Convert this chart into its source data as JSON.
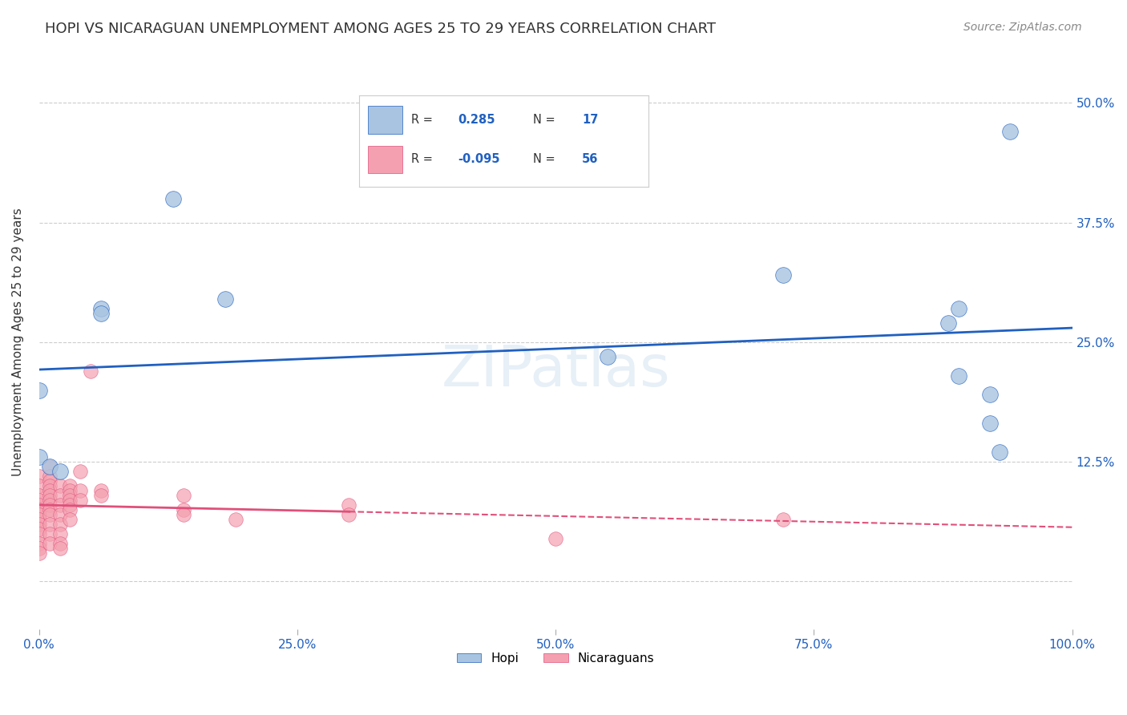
{
  "title": "HOPI VS NICARAGUAN UNEMPLOYMENT AMONG AGES 25 TO 29 YEARS CORRELATION CHART",
  "source": "Source: ZipAtlas.com",
  "ylabel": "Unemployment Among Ages 25 to 29 years",
  "xlim": [
    0.0,
    1.0
  ],
  "ylim": [
    -0.05,
    0.55
  ],
  "yticks": [
    0.0,
    0.125,
    0.25,
    0.375,
    0.5
  ],
  "ytick_labels": [
    "",
    "12.5%",
    "25.0%",
    "37.5%",
    "50.0%"
  ],
  "xtick_labels": [
    "0.0%",
    "25.0%",
    "50.0%",
    "75.0%",
    "100.0%"
  ],
  "xticks": [
    0.0,
    0.25,
    0.5,
    0.75,
    1.0
  ],
  "hopi_R": 0.285,
  "hopi_N": 17,
  "nicaraguan_R": -0.095,
  "nicaraguan_N": 56,
  "hopi_color": "#a8c4e0",
  "nicaraguan_color": "#f4a0b0",
  "hopi_line_color": "#2060c0",
  "nicaraguan_line_color": "#e0507a",
  "hopi_scatter": [
    [
      0.0,
      0.2
    ],
    [
      0.0,
      0.13
    ],
    [
      0.06,
      0.285
    ],
    [
      0.06,
      0.28
    ],
    [
      0.13,
      0.4
    ],
    [
      0.18,
      0.295
    ],
    [
      0.55,
      0.235
    ],
    [
      0.72,
      0.32
    ],
    [
      0.88,
      0.27
    ],
    [
      0.89,
      0.215
    ],
    [
      0.89,
      0.285
    ],
    [
      0.92,
      0.195
    ],
    [
      0.92,
      0.165
    ],
    [
      0.93,
      0.135
    ],
    [
      0.94,
      0.47
    ],
    [
      0.01,
      0.12
    ],
    [
      0.02,
      0.115
    ]
  ],
  "nicaraguan_scatter": [
    [
      0.0,
      0.11
    ],
    [
      0.0,
      0.1
    ],
    [
      0.0,
      0.09
    ],
    [
      0.0,
      0.085
    ],
    [
      0.0,
      0.08
    ],
    [
      0.0,
      0.075
    ],
    [
      0.0,
      0.07
    ],
    [
      0.0,
      0.065
    ],
    [
      0.0,
      0.06
    ],
    [
      0.0,
      0.055
    ],
    [
      0.0,
      0.05
    ],
    [
      0.0,
      0.04
    ],
    [
      0.0,
      0.035
    ],
    [
      0.0,
      0.03
    ],
    [
      0.01,
      0.12
    ],
    [
      0.01,
      0.11
    ],
    [
      0.01,
      0.105
    ],
    [
      0.01,
      0.1
    ],
    [
      0.01,
      0.095
    ],
    [
      0.01,
      0.09
    ],
    [
      0.01,
      0.085
    ],
    [
      0.01,
      0.08
    ],
    [
      0.01,
      0.075
    ],
    [
      0.01,
      0.07
    ],
    [
      0.01,
      0.06
    ],
    [
      0.01,
      0.05
    ],
    [
      0.01,
      0.04
    ],
    [
      0.02,
      0.1
    ],
    [
      0.02,
      0.09
    ],
    [
      0.02,
      0.08
    ],
    [
      0.02,
      0.07
    ],
    [
      0.02,
      0.06
    ],
    [
      0.02,
      0.05
    ],
    [
      0.02,
      0.04
    ],
    [
      0.02,
      0.035
    ],
    [
      0.03,
      0.1
    ],
    [
      0.03,
      0.095
    ],
    [
      0.03,
      0.09
    ],
    [
      0.03,
      0.085
    ],
    [
      0.03,
      0.08
    ],
    [
      0.03,
      0.075
    ],
    [
      0.03,
      0.065
    ],
    [
      0.04,
      0.115
    ],
    [
      0.04,
      0.095
    ],
    [
      0.04,
      0.085
    ],
    [
      0.05,
      0.22
    ],
    [
      0.06,
      0.095
    ],
    [
      0.06,
      0.09
    ],
    [
      0.14,
      0.09
    ],
    [
      0.14,
      0.075
    ],
    [
      0.14,
      0.07
    ],
    [
      0.19,
      0.065
    ],
    [
      0.3,
      0.08
    ],
    [
      0.3,
      0.07
    ],
    [
      0.72,
      0.065
    ],
    [
      0.5,
      0.045
    ]
  ],
  "watermark": "ZIPatlas",
  "background_color": "#ffffff",
  "grid_color": "#cccccc"
}
